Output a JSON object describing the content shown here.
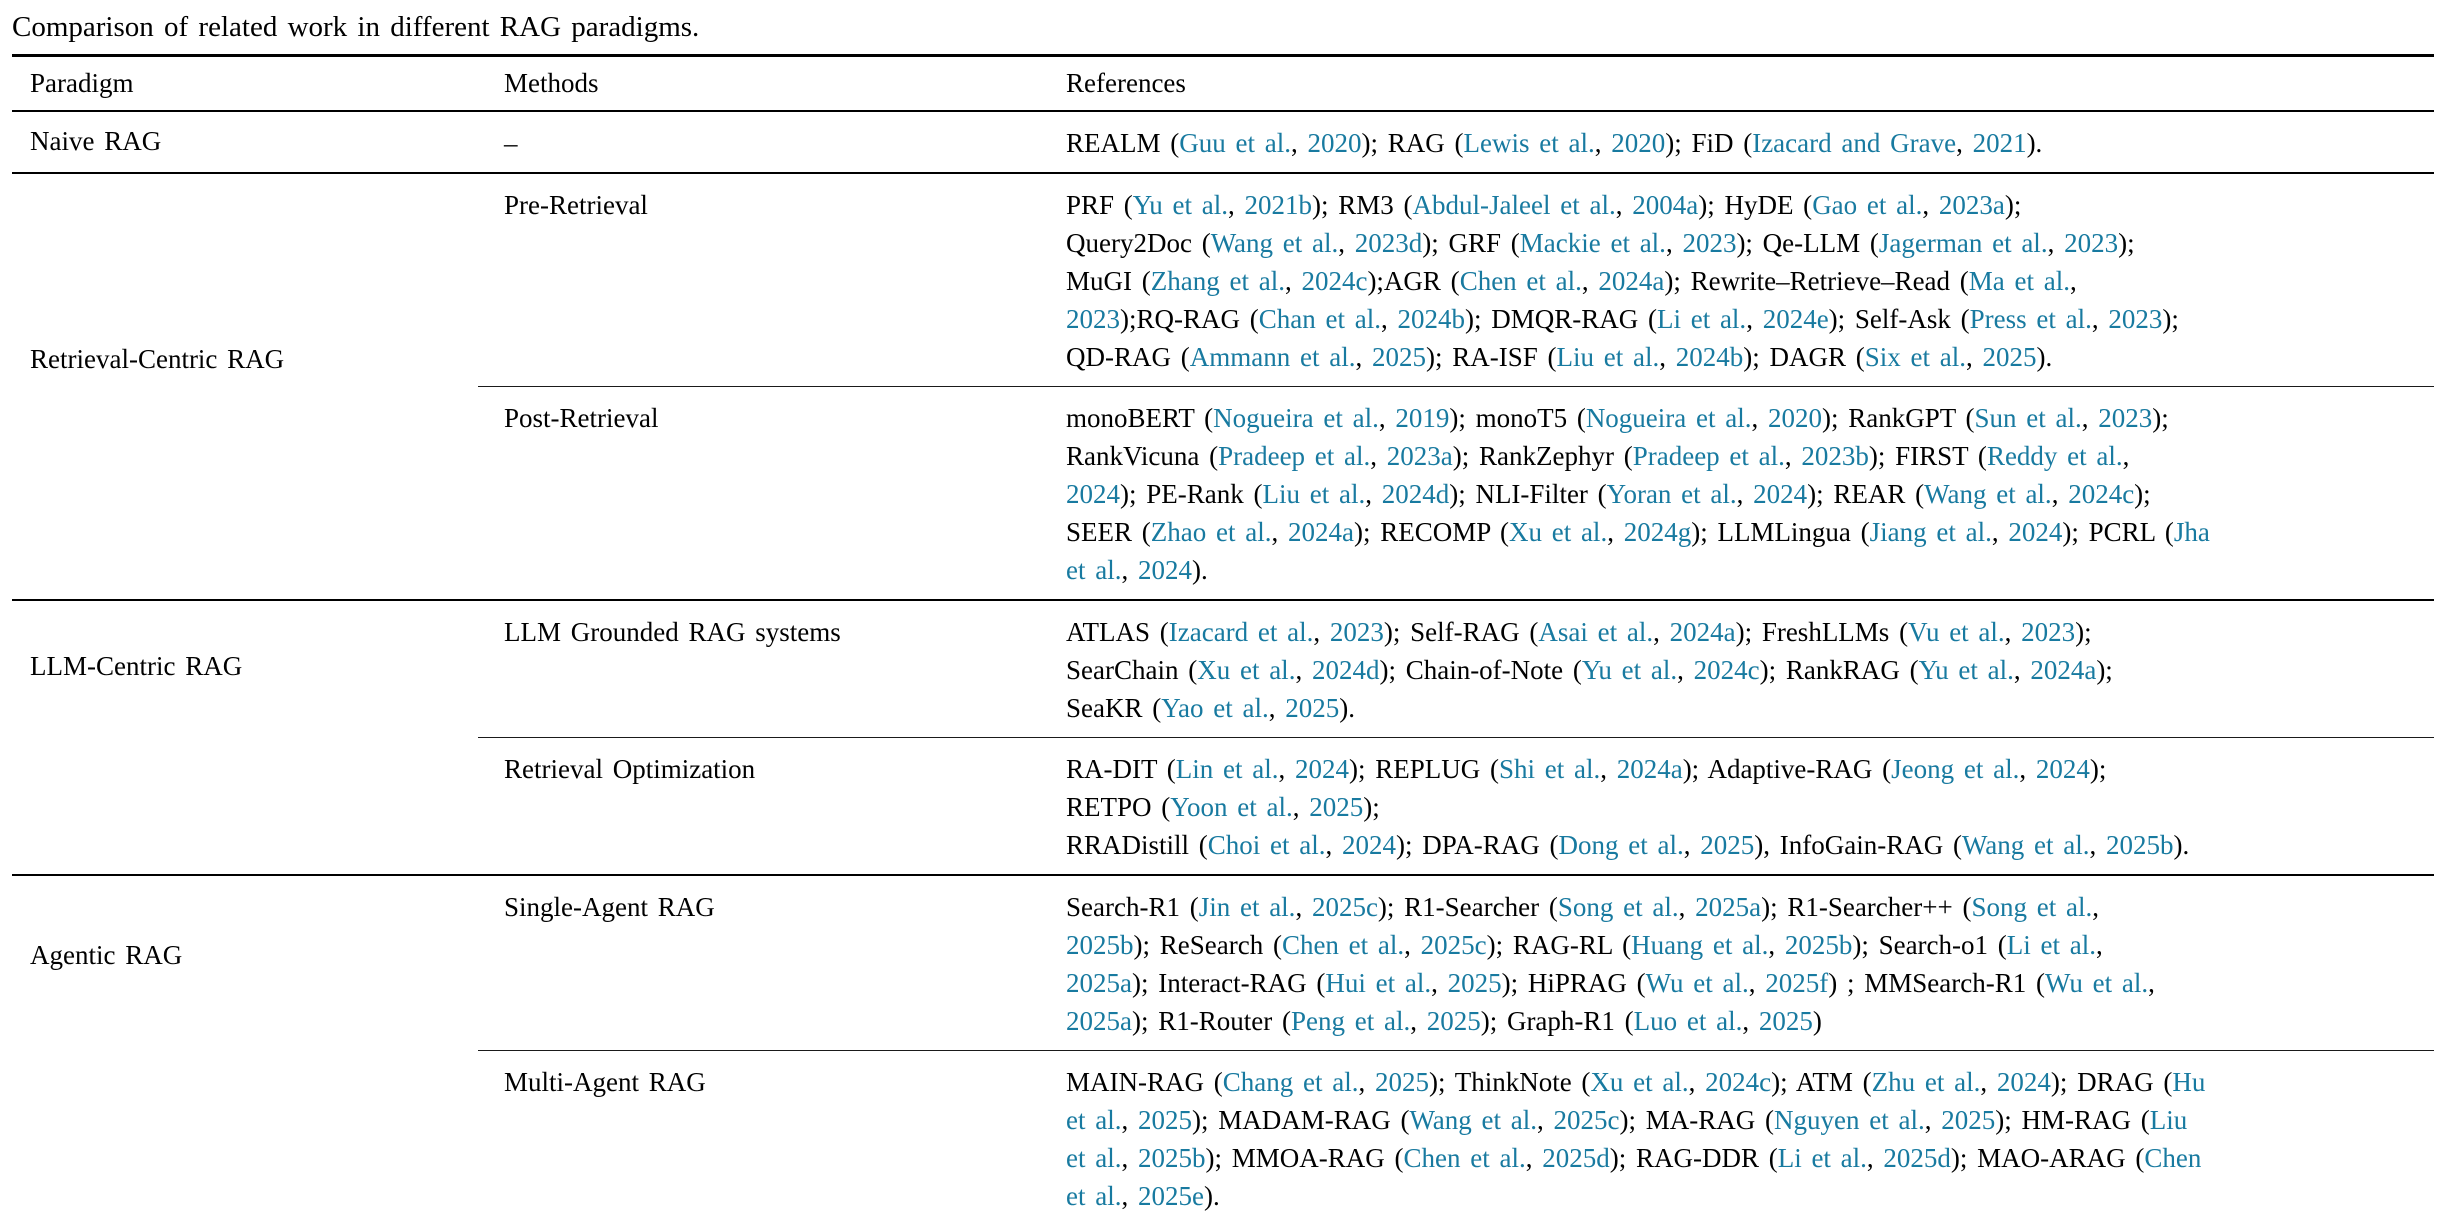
{
  "caption": "Comparison of related work in different RAG paradigms.",
  "columns": [
    "Paradigm",
    "Methods",
    "References"
  ],
  "link_color": "#187aa0",
  "groups": [
    {
      "paradigm": "Naive RAG",
      "blocks": [
        {
          "method": "–",
          "lines": [
            [
              {
                "t": "REALM ("
              },
              {
                "l": "Guu et al."
              },
              {
                "t": ", "
              },
              {
                "l": "2020"
              },
              {
                "t": "); RAG ("
              },
              {
                "l": "Lewis et al."
              },
              {
                "t": ", "
              },
              {
                "l": "2020"
              },
              {
                "t": "); FiD ("
              },
              {
                "l": "Izacard and Grave"
              },
              {
                "t": ", "
              },
              {
                "l": "2021"
              },
              {
                "t": ")."
              }
            ]
          ]
        }
      ]
    },
    {
      "paradigm": "Retrieval-Centric RAG",
      "blocks": [
        {
          "method": "Pre-Retrieval",
          "lines": [
            [
              {
                "t": "PRF ("
              },
              {
                "l": "Yu et al."
              },
              {
                "t": ", "
              },
              {
                "l": "2021b"
              },
              {
                "t": "); RM3 ("
              },
              {
                "l": "Abdul-Jaleel et al."
              },
              {
                "t": ", "
              },
              {
                "l": "2004a"
              },
              {
                "t": "); HyDE ("
              },
              {
                "l": "Gao et al."
              },
              {
                "t": ", "
              },
              {
                "l": "2023a"
              },
              {
                "t": ");"
              }
            ],
            [
              {
                "t": "Query2Doc ("
              },
              {
                "l": "Wang et al."
              },
              {
                "t": ", "
              },
              {
                "l": "2023d"
              },
              {
                "t": "); GRF ("
              },
              {
                "l": "Mackie et al."
              },
              {
                "t": ", "
              },
              {
                "l": "2023"
              },
              {
                "t": "); Qe-LLM ("
              },
              {
                "l": "Jagerman et al."
              },
              {
                "t": ", "
              },
              {
                "l": "2023"
              },
              {
                "t": ");"
              }
            ],
            [
              {
                "t": "MuGI ("
              },
              {
                "l": "Zhang et al."
              },
              {
                "t": ", "
              },
              {
                "l": "2024c"
              },
              {
                "t": ");AGR ("
              },
              {
                "l": "Chen et al."
              },
              {
                "t": ", "
              },
              {
                "l": "2024a"
              },
              {
                "t": "); Rewrite–Retrieve–Read ("
              },
              {
                "l": "Ma et al."
              },
              {
                "t": ","
              }
            ],
            [
              {
                "l": "2023"
              },
              {
                "t": ");RQ-RAG ("
              },
              {
                "l": "Chan et al."
              },
              {
                "t": ", "
              },
              {
                "l": "2024b"
              },
              {
                "t": "); DMQR-RAG ("
              },
              {
                "l": "Li et al."
              },
              {
                "t": ", "
              },
              {
                "l": "2024e"
              },
              {
                "t": "); Self-Ask ("
              },
              {
                "l": "Press et al."
              },
              {
                "t": ", "
              },
              {
                "l": "2023"
              },
              {
                "t": ");"
              }
            ],
            [
              {
                "t": "QD-RAG ("
              },
              {
                "l": "Ammann et al."
              },
              {
                "t": ", "
              },
              {
                "l": "2025"
              },
              {
                "t": "); RA-ISF ("
              },
              {
                "l": "Liu et al."
              },
              {
                "t": ", "
              },
              {
                "l": "2024b"
              },
              {
                "t": "); DAGR ("
              },
              {
                "l": "Six et al."
              },
              {
                "t": ", "
              },
              {
                "l": "2025"
              },
              {
                "t": ")."
              }
            ]
          ]
        },
        {
          "method": "Post-Retrieval",
          "lines": [
            [
              {
                "t": "monoBERT ("
              },
              {
                "l": "Nogueira et al."
              },
              {
                "t": ", "
              },
              {
                "l": "2019"
              },
              {
                "t": "); monoT5 ("
              },
              {
                "l": "Nogueira et al."
              },
              {
                "t": ", "
              },
              {
                "l": "2020"
              },
              {
                "t": "); RankGPT ("
              },
              {
                "l": "Sun et al."
              },
              {
                "t": ", "
              },
              {
                "l": "2023"
              },
              {
                "t": ");"
              }
            ],
            [
              {
                "t": "RankVicuna ("
              },
              {
                "l": "Pradeep et al."
              },
              {
                "t": ", "
              },
              {
                "l": "2023a"
              },
              {
                "t": "); RankZephyr ("
              },
              {
                "l": "Pradeep et al."
              },
              {
                "t": ", "
              },
              {
                "l": "2023b"
              },
              {
                "t": "); FIRST ("
              },
              {
                "l": "Reddy et al."
              },
              {
                "t": ","
              }
            ],
            [
              {
                "l": "2024"
              },
              {
                "t": "); PE-Rank ("
              },
              {
                "l": "Liu et al."
              },
              {
                "t": ", "
              },
              {
                "l": "2024d"
              },
              {
                "t": "); NLI-Filter ("
              },
              {
                "l": "Yoran et al."
              },
              {
                "t": ", "
              },
              {
                "l": "2024"
              },
              {
                "t": "); REAR ("
              },
              {
                "l": "Wang et al."
              },
              {
                "t": ", "
              },
              {
                "l": "2024c"
              },
              {
                "t": ");"
              }
            ],
            [
              {
                "t": "SEER ("
              },
              {
                "l": "Zhao et al."
              },
              {
                "t": ", "
              },
              {
                "l": "2024a"
              },
              {
                "t": "); RECOMP ("
              },
              {
                "l": "Xu et al."
              },
              {
                "t": ", "
              },
              {
                "l": "2024g"
              },
              {
                "t": "); LLMLingua ("
              },
              {
                "l": "Jiang et al."
              },
              {
                "t": ", "
              },
              {
                "l": "2024"
              },
              {
                "t": "); PCRL ("
              },
              {
                "l": "Jha"
              }
            ],
            [
              {
                "l": "et al."
              },
              {
                "t": ", "
              },
              {
                "l": "2024"
              },
              {
                "t": ")."
              }
            ]
          ]
        }
      ]
    },
    {
      "paradigm": "LLM-Centric RAG",
      "blocks": [
        {
          "method": "LLM Grounded RAG systems",
          "lines": [
            [
              {
                "t": "ATLAS ("
              },
              {
                "l": "Izacard et al."
              },
              {
                "t": ", "
              },
              {
                "l": "2023"
              },
              {
                "t": "); Self-RAG ("
              },
              {
                "l": "Asai et al."
              },
              {
                "t": ", "
              },
              {
                "l": "2024a"
              },
              {
                "t": "); FreshLLMs ("
              },
              {
                "l": "Vu et al."
              },
              {
                "t": ", "
              },
              {
                "l": "2023"
              },
              {
                "t": ");"
              }
            ],
            [
              {
                "t": "SearChain ("
              },
              {
                "l": "Xu et al."
              },
              {
                "t": ", "
              },
              {
                "l": "2024d"
              },
              {
                "t": "); Chain-of-Note ("
              },
              {
                "l": "Yu et al."
              },
              {
                "t": ", "
              },
              {
                "l": "2024c"
              },
              {
                "t": "); RankRAG ("
              },
              {
                "l": "Yu et al."
              },
              {
                "t": ", "
              },
              {
                "l": "2024a"
              },
              {
                "t": ");"
              }
            ],
            [
              {
                "t": "SeaKR ("
              },
              {
                "l": "Yao et al."
              },
              {
                "t": ", "
              },
              {
                "l": "2025"
              },
              {
                "t": ")."
              }
            ]
          ]
        },
        {
          "method": "Retrieval Optimization",
          "lines": [
            [
              {
                "t": "RA-DIT ("
              },
              {
                "l": "Lin et al."
              },
              {
                "t": ", "
              },
              {
                "l": "2024"
              },
              {
                "t": "); REPLUG ("
              },
              {
                "l": "Shi et al."
              },
              {
                "t": ", "
              },
              {
                "l": "2024a"
              },
              {
                "t": "); Adaptive-RAG ("
              },
              {
                "l": "Jeong et al."
              },
              {
                "t": ", "
              },
              {
                "l": "2024"
              },
              {
                "t": ");"
              }
            ],
            [
              {
                "t": "RETPO ("
              },
              {
                "l": "Yoon et al."
              },
              {
                "t": ", "
              },
              {
                "l": "2025"
              },
              {
                "t": ");"
              }
            ],
            [
              {
                "t": "RRADistill ("
              },
              {
                "l": "Choi et al."
              },
              {
                "t": ", "
              },
              {
                "l": "2024"
              },
              {
                "t": "); DPA-RAG ("
              },
              {
                "l": "Dong et al."
              },
              {
                "t": ", "
              },
              {
                "l": "2025"
              },
              {
                "t": "), InfoGain-RAG ("
              },
              {
                "l": "Wang et al."
              },
              {
                "t": ", "
              },
              {
                "l": "2025b"
              },
              {
                "t": ")."
              }
            ]
          ]
        }
      ]
    },
    {
      "paradigm": "Agentic RAG",
      "blocks": [
        {
          "method": "Single-Agent RAG",
          "lines": [
            [
              {
                "t": "Search-R1 ("
              },
              {
                "l": "Jin et al."
              },
              {
                "t": ", "
              },
              {
                "l": "2025c"
              },
              {
                "t": "); R1-Searcher ("
              },
              {
                "l": "Song et al."
              },
              {
                "t": ", "
              },
              {
                "l": "2025a"
              },
              {
                "t": "); R1-Searcher++ ("
              },
              {
                "l": "Song et al."
              },
              {
                "t": ","
              }
            ],
            [
              {
                "l": "2025b"
              },
              {
                "t": "); ReSearch ("
              },
              {
                "l": "Chen et al."
              },
              {
                "t": ", "
              },
              {
                "l": "2025c"
              },
              {
                "t": "); RAG-RL ("
              },
              {
                "l": "Huang et al."
              },
              {
                "t": ", "
              },
              {
                "l": "2025b"
              },
              {
                "t": "); Search-o1 ("
              },
              {
                "l": "Li et al."
              },
              {
                "t": ","
              }
            ],
            [
              {
                "l": "2025a"
              },
              {
                "t": "); Interact-RAG ("
              },
              {
                "l": "Hui et al."
              },
              {
                "t": ", "
              },
              {
                "l": "2025"
              },
              {
                "t": "); HiPRAG ("
              },
              {
                "l": "Wu et al."
              },
              {
                "t": ", "
              },
              {
                "l": "2025f"
              },
              {
                "t": ") ; MMSearch-R1 ("
              },
              {
                "l": "Wu et al."
              },
              {
                "t": ","
              }
            ],
            [
              {
                "l": "2025a"
              },
              {
                "t": "); R1-Router ("
              },
              {
                "l": "Peng et al."
              },
              {
                "t": ", "
              },
              {
                "l": "2025"
              },
              {
                "t": "); Graph-R1 ("
              },
              {
                "l": "Luo et al."
              },
              {
                "t": ", "
              },
              {
                "l": "2025"
              },
              {
                "t": ")"
              }
            ]
          ]
        },
        {
          "method": "Multi-Agent RAG",
          "lines": [
            [
              {
                "t": "MAIN-RAG ("
              },
              {
                "l": "Chang et al."
              },
              {
                "t": ", "
              },
              {
                "l": "2025"
              },
              {
                "t": "); ThinkNote ("
              },
              {
                "l": "Xu et al."
              },
              {
                "t": ", "
              },
              {
                "l": "2024c"
              },
              {
                "t": "); ATM ("
              },
              {
                "l": "Zhu et al."
              },
              {
                "t": ", "
              },
              {
                "l": "2024"
              },
              {
                "t": "); DRAG ("
              },
              {
                "l": "Hu"
              }
            ],
            [
              {
                "l": "et al."
              },
              {
                "t": ", "
              },
              {
                "l": "2025"
              },
              {
                "t": "); MADAM-RAG ("
              },
              {
                "l": "Wang et al."
              },
              {
                "t": ", "
              },
              {
                "l": "2025c"
              },
              {
                "t": "); MA-RAG ("
              },
              {
                "l": "Nguyen et al."
              },
              {
                "t": ", "
              },
              {
                "l": "2025"
              },
              {
                "t": "); HM-RAG ("
              },
              {
                "l": "Liu"
              }
            ],
            [
              {
                "l": "et al."
              },
              {
                "t": ", "
              },
              {
                "l": "2025b"
              },
              {
                "t": "); MMOA-RAG ("
              },
              {
                "l": "Chen et al."
              },
              {
                "t": ", "
              },
              {
                "l": "2025d"
              },
              {
                "t": "); RAG-DDR ("
              },
              {
                "l": "Li et al."
              },
              {
                "t": ", "
              },
              {
                "l": "2025d"
              },
              {
                "t": "); MAO-ARAG ("
              },
              {
                "l": "Chen"
              }
            ],
            [
              {
                "l": "et al."
              },
              {
                "t": ", "
              },
              {
                "l": "2025e"
              },
              {
                "t": ")."
              }
            ]
          ]
        }
      ]
    }
  ]
}
